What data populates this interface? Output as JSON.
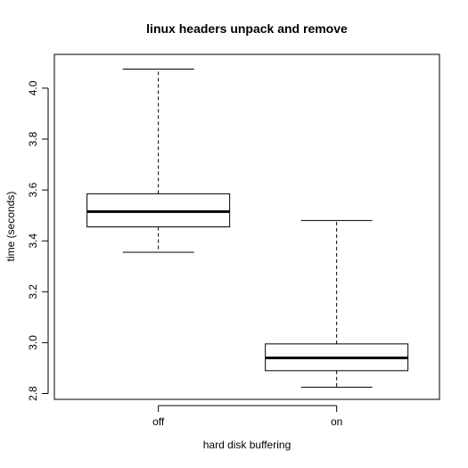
{
  "chart_data": {
    "type": "boxplot",
    "title": "linux headers unpack and remove",
    "xlabel": "hard disk buffering",
    "ylabel": "time (seconds)",
    "categories": [
      "off",
      "on"
    ],
    "boxes": [
      {
        "category": "off",
        "min": 3.355,
        "q1": 3.455,
        "median": 3.515,
        "q3": 3.585,
        "max": 4.075
      },
      {
        "category": "on",
        "min": 2.825,
        "q1": 2.89,
        "median": 2.94,
        "q3": 2.995,
        "max": 3.48
      }
    ],
    "yticks": [
      "2.8",
      "3.0",
      "3.2",
      "3.4",
      "3.6",
      "3.8",
      "4.0"
    ],
    "ylim": [
      2.78,
      4.1
    ],
    "grid": false,
    "legend": "none"
  }
}
